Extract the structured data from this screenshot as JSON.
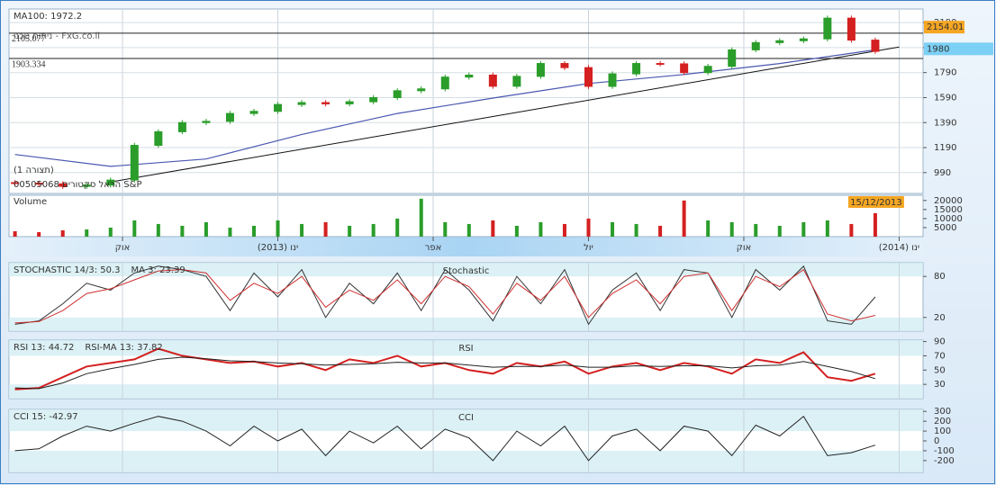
{
  "chart_data": [
    {
      "type": "candlestick",
      "ma_label": "MA100: 1972.2",
      "watermark": "ניתוח טכני - FxG.co.il",
      "pattern_label": "(תצורה 1)",
      "symbol_label": "00505068 הראל סקטורים S&P",
      "x": [
        2,
        4,
        6,
        8,
        10,
        12,
        14,
        16,
        18,
        20,
        22,
        24,
        26,
        28,
        30,
        32,
        34,
        36,
        38,
        40,
        42,
        44,
        46,
        48,
        50,
        52,
        54,
        56,
        58,
        60,
        62,
        64,
        66,
        68,
        70,
        72,
        74
      ],
      "open": [
        910,
        905,
        900,
        880,
        890,
        930,
        1208,
        1317,
        1390,
        1400,
        1463,
        1480,
        1535,
        1550,
        1540,
        1557,
        1590,
        1645,
        1660,
        1754,
        1770,
        1681,
        1760,
        1863,
        1830,
        1680,
        1780,
        1863,
        1860,
        1790,
        1840,
        1972,
        2030,
        2045,
        2060,
        2226,
        2050
      ],
      "high": [
        930,
        925,
        920,
        910,
        950,
        1228,
        1337,
        1410,
        1420,
        1483,
        1500,
        1555,
        1570,
        1570,
        1577,
        1610,
        1665,
        1680,
        1774,
        1790,
        1790,
        1780,
        1883,
        1883,
        1850,
        1800,
        1883,
        1883,
        1880,
        1860,
        1992,
        2050,
        2065,
        2080,
        2246,
        2246,
        2070
      ],
      "low": [
        885,
        880,
        860,
        860,
        870,
        910,
        1188,
        1297,
        1370,
        1380,
        1443,
        1460,
        1515,
        1520,
        1520,
        1537,
        1570,
        1625,
        1640,
        1734,
        1661,
        1661,
        1740,
        1810,
        1660,
        1660,
        1760,
        1840,
        1770,
        1770,
        1820,
        1952,
        2010,
        2025,
        2040,
        2030,
        1940
      ],
      "close": [
        905,
        900,
        880,
        890,
        930,
        1208,
        1317,
        1390,
        1400,
        1463,
        1480,
        1535,
        1550,
        1540,
        1557,
        1590,
        1645,
        1660,
        1754,
        1770,
        1681,
        1760,
        1863,
        1830,
        1680,
        1780,
        1863,
        1860,
        1790,
        1840,
        1972,
        2030,
        2045,
        2060,
        2226,
        2050,
        1960
      ],
      "up_color": "#2a9d2a",
      "down_color": "#d42020",
      "ma_x": [
        2,
        10,
        18,
        26,
        34,
        42,
        50,
        58,
        66,
        74
      ],
      "ma_values": [
        1135,
        1040,
        1099,
        1295,
        1463,
        1586,
        1703,
        1775,
        1863,
        1972
      ],
      "ma_color": "#4a58b0",
      "trend_x": [
        10,
        76
      ],
      "trend_values": [
        915,
        1995
      ],
      "hlines": [
        2105.077,
        1903.334
      ],
      "price_marks": [
        2154.01,
        1980
      ],
      "price_mark_colors": [
        "#f5a623",
        "#7cd0f5"
      ],
      "xlim": [
        1.5,
        78
      ],
      "vgrid": [
        11,
        24,
        37,
        50,
        63,
        76
      ],
      "ylim": [
        823,
        2299
      ],
      "yticks": [
        990,
        1190,
        1390,
        1590,
        1790,
        1990,
        2190
      ],
      "grid": true
    },
    {
      "type": "bar",
      "title": "Volume",
      "x": [
        2,
        4,
        6,
        8,
        10,
        12,
        14,
        16,
        18,
        20,
        22,
        24,
        26,
        28,
        30,
        32,
        34,
        36,
        38,
        40,
        42,
        44,
        46,
        48,
        50,
        52,
        54,
        56,
        58,
        60,
        62,
        64,
        66,
        68,
        70,
        72,
        74
      ],
      "values": [
        3000,
        2500,
        3500,
        4000,
        5000,
        9000,
        7000,
        6000,
        8000,
        5000,
        6000,
        9000,
        7000,
        8000,
        6000,
        7000,
        10000,
        21000,
        8000,
        7000,
        9000,
        6000,
        8000,
        7000,
        10000,
        8000,
        7000,
        6000,
        20000,
        9000,
        8000,
        7000,
        6000,
        8000,
        9000,
        7000,
        13000
      ],
      "colors": [
        "#d42020",
        "#d42020",
        "#d42020",
        "#2a9d2a",
        "#2a9d2a",
        "#2a9d2a",
        "#2a9d2a",
        "#2a9d2a",
        "#2a9d2a",
        "#2a9d2a",
        "#2a9d2a",
        "#2a9d2a",
        "#2a9d2a",
        "#d42020",
        "#2a9d2a",
        "#2a9d2a",
        "#2a9d2a",
        "#2a9d2a",
        "#2a9d2a",
        "#2a9d2a",
        "#d42020",
        "#2a9d2a",
        "#2a9d2a",
        "#d42020",
        "#d42020",
        "#2a9d2a",
        "#2a9d2a",
        "#d42020",
        "#d42020",
        "#2a9d2a",
        "#2a9d2a",
        "#2a9d2a",
        "#2a9d2a",
        "#2a9d2a",
        "#2a9d2a",
        "#d42020",
        "#d42020"
      ],
      "cursor_label": "15/12/2013",
      "cursor_x": 74,
      "xlim": [
        1.5,
        78
      ],
      "xticks": [
        {
          "value": 11,
          "label": "אוק"
        },
        {
          "value": 24,
          "label": "(2013) ינו"
        },
        {
          "value": 37,
          "label": "אפר"
        },
        {
          "value": 50,
          "label": "יול"
        },
        {
          "value": 63,
          "label": "אוק"
        },
        {
          "value": 76,
          "label": "(2014) ינו"
        }
      ],
      "ylim": [
        0,
        22900
      ],
      "yticks": [
        5000,
        10000,
        15000,
        20000
      ]
    },
    {
      "type": "line",
      "title": "Stochastic",
      "x": [
        2,
        4,
        6,
        8,
        10,
        12,
        14,
        16,
        18,
        20,
        22,
        24,
        26,
        28,
        30,
        32,
        34,
        36,
        38,
        40,
        42,
        44,
        46,
        48,
        50,
        52,
        54,
        56,
        58,
        60,
        62,
        64,
        66,
        68,
        70,
        72,
        74
      ],
      "series": [
        {
          "name": "STOCHASTIC 14/3: 50.3",
          "color": "#333333",
          "values": [
            10,
            15,
            40,
            70,
            60,
            85,
            95,
            90,
            80,
            30,
            85,
            50,
            90,
            20,
            70,
            40,
            85,
            30,
            90,
            60,
            15,
            80,
            40,
            90,
            10,
            60,
            85,
            30,
            90,
            85,
            20,
            90,
            60,
            95,
            15,
            10,
            50
          ]
        },
        {
          "name": "MA 3: 23.39",
          "color": "#d03030",
          "values": [
            12,
            14,
            30,
            55,
            62,
            75,
            88,
            90,
            85,
            45,
            70,
            55,
            80,
            35,
            60,
            45,
            75,
            40,
            80,
            65,
            25,
            70,
            45,
            80,
            20,
            55,
            75,
            40,
            80,
            85,
            30,
            80,
            65,
            90,
            25,
            15,
            23
          ]
        }
      ],
      "shade": [
        20,
        80
      ],
      "xlim": [
        1.5,
        78
      ],
      "vgrid": [
        11,
        24,
        37,
        50,
        63,
        76
      ],
      "ylim": [
        0,
        100
      ],
      "yticks": [
        20,
        80
      ]
    },
    {
      "type": "line",
      "title": "RSI",
      "x": [
        2,
        4,
        6,
        8,
        10,
        12,
        14,
        16,
        18,
        20,
        22,
        24,
        26,
        28,
        30,
        32,
        34,
        36,
        38,
        40,
        42,
        44,
        46,
        48,
        50,
        52,
        54,
        56,
        58,
        60,
        62,
        64,
        66,
        68,
        70,
        72,
        74
      ],
      "series": [
        {
          "name": "RSI 13: 44.72",
          "color": "#d42020",
          "values": [
            23,
            25,
            40,
            55,
            60,
            65,
            80,
            70,
            65,
            60,
            62,
            55,
            60,
            50,
            65,
            60,
            70,
            55,
            60,
            50,
            45,
            60,
            55,
            62,
            45,
            55,
            60,
            50,
            60,
            55,
            45,
            65,
            60,
            75,
            40,
            35,
            45
          ]
        },
        {
          "name": "RSI-MA 13: 37.82",
          "color": "#222222",
          "values": [
            25,
            24,
            32,
            45,
            52,
            58,
            65,
            68,
            66,
            63,
            62,
            60,
            59,
            57,
            58,
            59,
            61,
            60,
            60,
            57,
            54,
            55,
            55,
            57,
            54,
            54,
            56,
            55,
            56,
            56,
            53,
            56,
            57,
            62,
            55,
            48,
            38
          ]
        }
      ],
      "shade": [
        30,
        70
      ],
      "xlim": [
        1.5,
        78
      ],
      "vgrid": [
        11,
        24,
        37,
        50,
        63,
        76
      ],
      "ylim": [
        10,
        92
      ],
      "yticks": [
        30,
        50,
        70,
        90
      ]
    },
    {
      "type": "line",
      "title": "CCI",
      "x": [
        2,
        4,
        6,
        8,
        10,
        12,
        14,
        16,
        18,
        20,
        22,
        24,
        26,
        28,
        30,
        32,
        34,
        36,
        38,
        40,
        42,
        44,
        46,
        48,
        50,
        52,
        54,
        56,
        58,
        60,
        62,
        64,
        66,
        68,
        70,
        72,
        74
      ],
      "series": [
        {
          "name": "CCI 15: -42.97",
          "color": "#222222",
          "values": [
            -100,
            -80,
            50,
            150,
            100,
            180,
            250,
            200,
            100,
            -50,
            150,
            0,
            120,
            -150,
            100,
            -20,
            150,
            -80,
            120,
            30,
            -200,
            100,
            -50,
            150,
            -200,
            50,
            120,
            -100,
            150,
            100,
            -150,
            160,
            50,
            250,
            -150,
            -120,
            -43
          ]
        }
      ],
      "shade": [
        -100,
        100
      ],
      "xlim": [
        1.5,
        78
      ],
      "vgrid": [
        11,
        24,
        37,
        50,
        63,
        76
      ],
      "ylim": [
        -320,
        320
      ],
      "yticks": [
        -200,
        -100,
        0,
        100,
        200,
        300
      ]
    }
  ]
}
